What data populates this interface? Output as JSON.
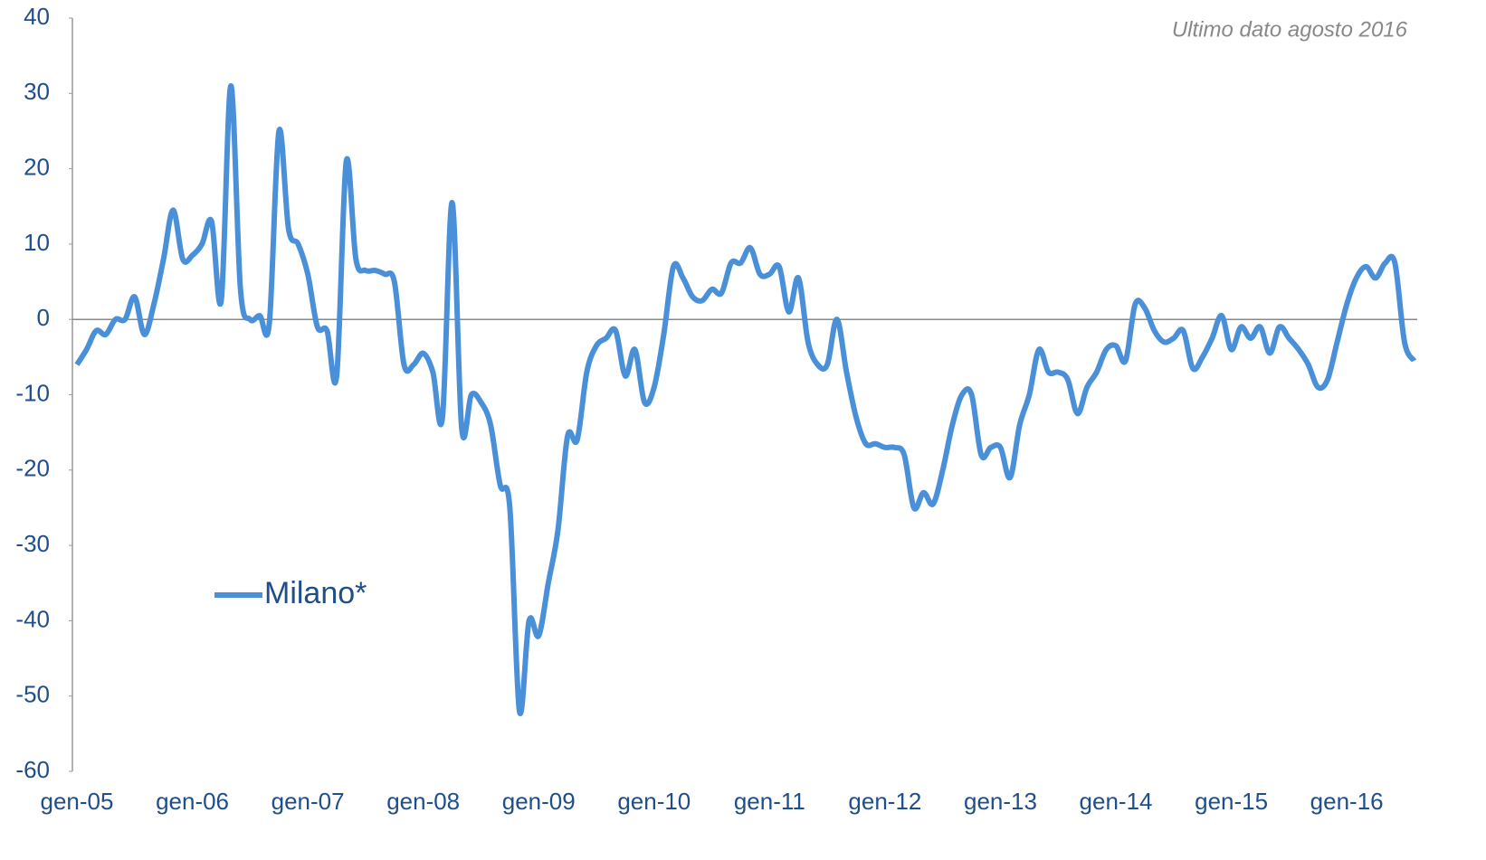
{
  "chart_data": {
    "type": "line",
    "annotation": "Ultimo dato agosto 2016",
    "categories": [
      "gen-05",
      null,
      null,
      null,
      null,
      null,
      null,
      null,
      null,
      null,
      null,
      null,
      "gen-06",
      null,
      null,
      null,
      null,
      null,
      null,
      null,
      null,
      null,
      null,
      null,
      "gen-07",
      null,
      null,
      null,
      null,
      null,
      null,
      null,
      null,
      null,
      null,
      null,
      "gen-08",
      null,
      null,
      null,
      null,
      null,
      null,
      null,
      null,
      null,
      null,
      null,
      "gen-09",
      null,
      null,
      null,
      null,
      null,
      null,
      null,
      null,
      null,
      null,
      null,
      "gen-10",
      null,
      null,
      null,
      null,
      null,
      null,
      null,
      null,
      null,
      null,
      null,
      "gen-11",
      null,
      null,
      null,
      null,
      null,
      null,
      null,
      null,
      null,
      null,
      null,
      "gen-12",
      null,
      null,
      null,
      null,
      null,
      null,
      null,
      null,
      null,
      null,
      null,
      "gen-13",
      null,
      null,
      null,
      null,
      null,
      null,
      null,
      null,
      null,
      null,
      null,
      "gen-14",
      null,
      null,
      null,
      null,
      null,
      null,
      null,
      null,
      null,
      null,
      null,
      "gen-15",
      null,
      null,
      null,
      null,
      null,
      null,
      null,
      null,
      null,
      null,
      null,
      "gen-16",
      null,
      null,
      null,
      null,
      null,
      null,
      null
    ],
    "series": [
      {
        "name": "Milano*",
        "color": "#4a90d9",
        "values": [
          -6,
          -4,
          -1.5,
          -2,
          0,
          0,
          3,
          -2,
          2,
          8,
          14.5,
          8,
          8.5,
          10,
          13,
          2.5,
          31,
          4,
          0,
          0.5,
          -0.5,
          25,
          12,
          10,
          6,
          -1,
          -1.5,
          -7.5,
          21,
          8,
          6.5,
          6.5,
          6,
          5,
          -6,
          -6,
          -4.5,
          -7,
          -13,
          15.5,
          -14.5,
          -10,
          -11,
          -14,
          -22,
          -25,
          -52,
          -40,
          -42,
          -35,
          -28,
          -15.5,
          -16,
          -7,
          -3.5,
          -2.5,
          -1.5,
          -7.5,
          -4,
          -11,
          -9,
          -2,
          7,
          5.5,
          3,
          2.5,
          4,
          3.5,
          7.5,
          7.5,
          9.5,
          6,
          6,
          7,
          1,
          5.5,
          -3,
          -6,
          -6,
          0,
          -7,
          -13,
          -16.5,
          -16.5,
          -17,
          -17,
          -18,
          -25,
          -23,
          -24.5,
          -20,
          -14,
          -10,
          -10,
          -18,
          -17,
          -17,
          -21,
          -14,
          -10,
          -4,
          -7,
          -7,
          -8,
          -12.5,
          -9,
          -7,
          -4,
          -3.5,
          -5.5,
          2,
          1.5,
          -1.5,
          -3,
          -2.5,
          -1.5,
          -6.5,
          -5,
          -2.5,
          0.5,
          -4,
          -1,
          -2.5,
          -1,
          -4.5,
          -1,
          -2.5,
          -4,
          -6,
          -9,
          -8,
          -3,
          2,
          5.5,
          7,
          5.5,
          7.5,
          7.5,
          -3,
          -5.5
        ]
      }
    ],
    "ylim": [
      -60,
      40
    ],
    "yticks": [
      -60,
      -50,
      -40,
      -30,
      -20,
      -10,
      0,
      10,
      20,
      30,
      40
    ]
  }
}
